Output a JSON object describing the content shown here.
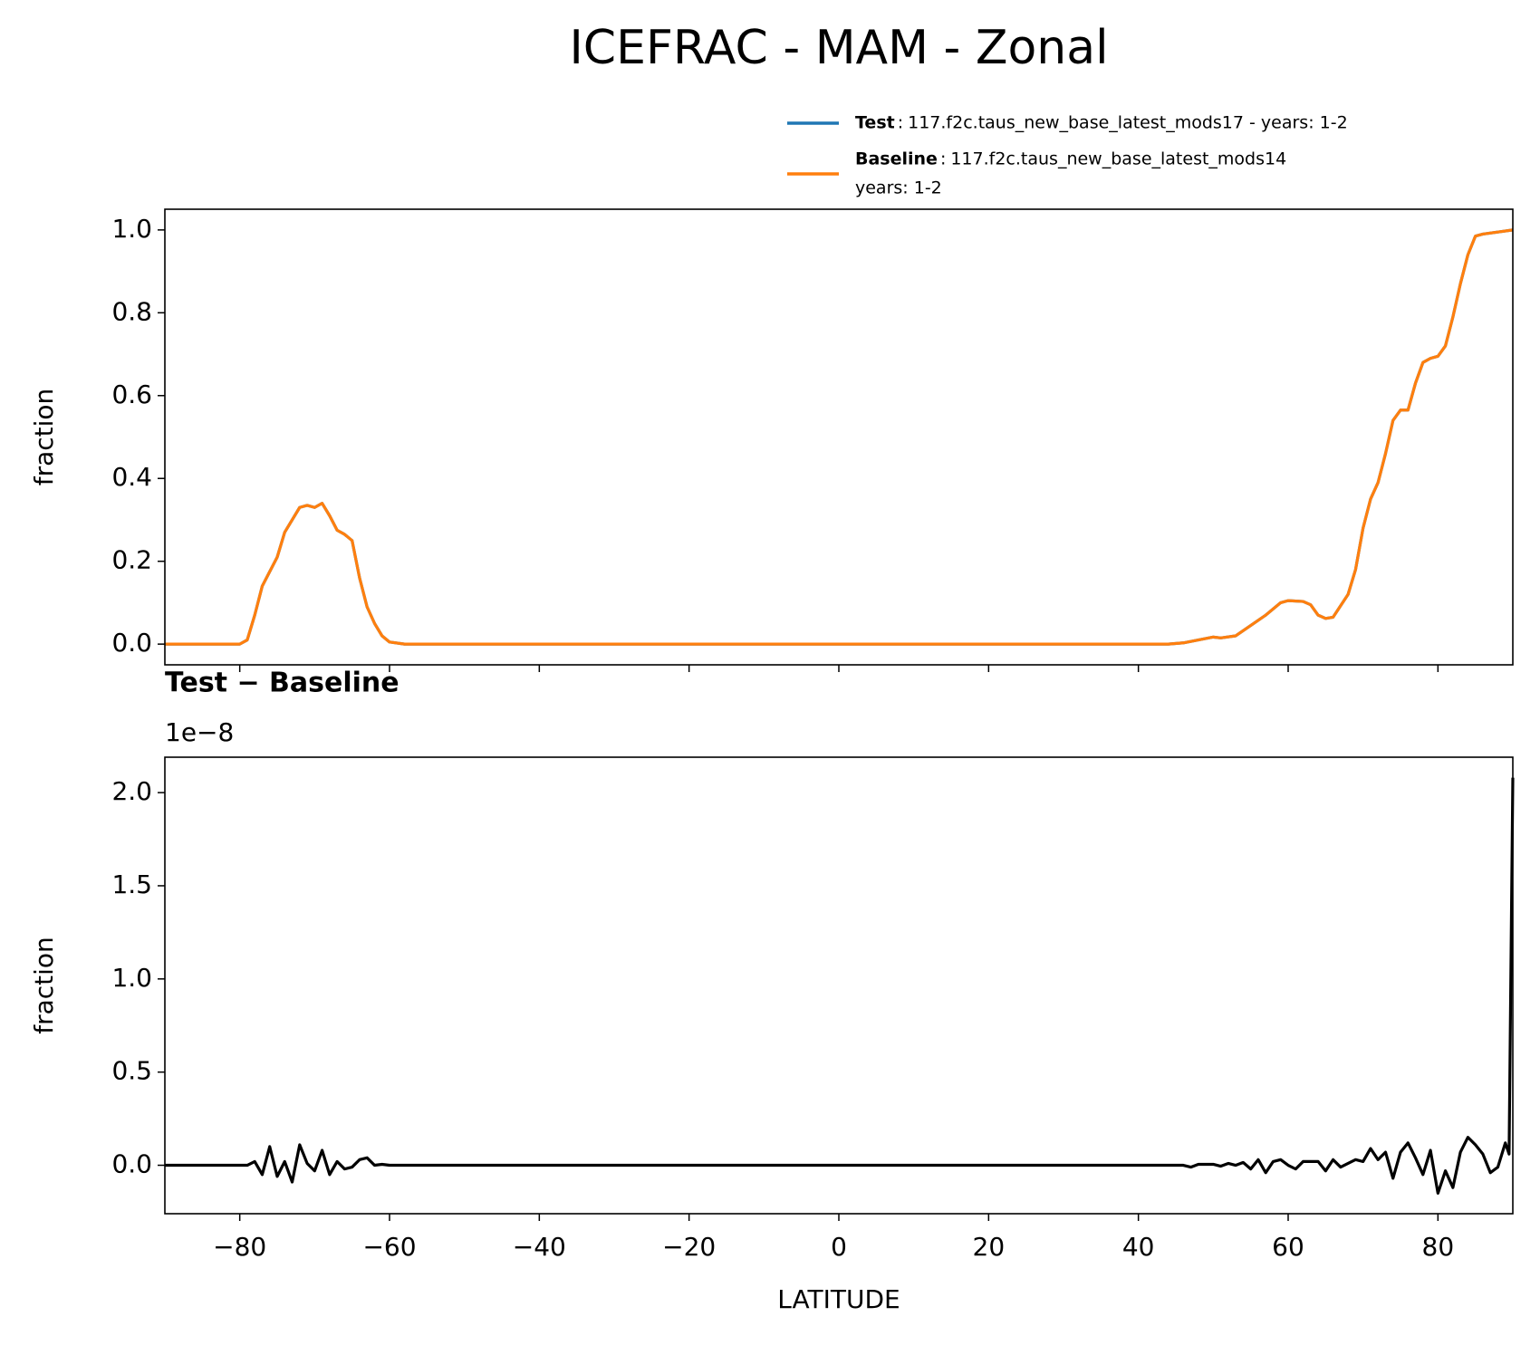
{
  "title": "ICEFRAC - MAM - Zonal",
  "chart_data": [
    {
      "type": "line",
      "ylabel": "fraction",
      "legend": "upper right",
      "label_separator": ":",
      "xlim": [
        -90,
        90
      ],
      "xticks": [
        {
          "value": -80,
          "label": "−80"
        },
        {
          "value": -60,
          "label": "−60"
        },
        {
          "value": -40,
          "label": "−40"
        },
        {
          "value": -20,
          "label": "−20"
        },
        0,
        20,
        40,
        60,
        80
      ],
      "xtick_labels": false,
      "ylim": [
        -0.05,
        1.05
      ],
      "yticks": [
        {
          "value": 0,
          "label": "0.0"
        },
        0.2,
        0.4,
        0.6,
        0.8,
        {
          "value": 1,
          "label": "1.0"
        }
      ],
      "x": [
        -90,
        -80,
        -79,
        -78,
        -77,
        -75,
        -74,
        -72,
        -71,
        -70,
        -69,
        -68,
        -67,
        -66,
        -65,
        -64,
        -63,
        -62,
        -61,
        -60,
        -58,
        44,
        46,
        48,
        50,
        51,
        53,
        55,
        57,
        59,
        60,
        62,
        63,
        64,
        65,
        66,
        68,
        69,
        70,
        71,
        72,
        73,
        74,
        75,
        76,
        77,
        78,
        79,
        80,
        81,
        82,
        83,
        84,
        85,
        86,
        88,
        90
      ],
      "series": [
        {
          "name": "Test",
          "description": [
            "117.f2c.taus_new_base_latest_mods17 - years: 1-2"
          ],
          "color": "#1f77b4",
          "values": [
            0,
            0,
            0.01,
            0.07,
            0.14,
            0.21,
            0.27,
            0.33,
            0.335,
            0.33,
            0.34,
            0.31,
            0.275,
            0.265,
            0.25,
            0.16,
            0.09,
            0.05,
            0.02,
            0.005,
            0,
            0,
            0.003,
            0.01,
            0.017,
            0.015,
            0.02,
            0.045,
            0.07,
            0.1,
            0.105,
            0.103,
            0.095,
            0.07,
            0.062,
            0.065,
            0.12,
            0.18,
            0.28,
            0.35,
            0.39,
            0.46,
            0.54,
            0.565,
            0.565,
            0.63,
            0.68,
            0.69,
            0.695,
            0.72,
            0.79,
            0.87,
            0.94,
            0.985,
            0.99,
            0.995,
            1.0
          ]
        },
        {
          "name": "Baseline",
          "description": [
            "117.f2c.taus_new_base_latest_mods14",
            "years: 1-2"
          ],
          "color": "#ff7f0e",
          "values": [
            0,
            0,
            0.01,
            0.07,
            0.14,
            0.21,
            0.27,
            0.33,
            0.335,
            0.33,
            0.34,
            0.31,
            0.275,
            0.265,
            0.25,
            0.16,
            0.09,
            0.05,
            0.02,
            0.005,
            0,
            0,
            0.003,
            0.01,
            0.017,
            0.015,
            0.02,
            0.045,
            0.07,
            0.1,
            0.105,
            0.103,
            0.095,
            0.07,
            0.062,
            0.065,
            0.12,
            0.18,
            0.28,
            0.35,
            0.39,
            0.46,
            0.54,
            0.565,
            0.565,
            0.63,
            0.68,
            0.69,
            0.695,
            0.72,
            0.79,
            0.87,
            0.94,
            0.985,
            0.99,
            0.995,
            1.0
          ]
        }
      ]
    },
    {
      "type": "line",
      "title": "Test − Baseline",
      "offset_label": "1e−8",
      "xlabel": "LATITUDE",
      "ylabel": "fraction",
      "xlim": [
        -90,
        90
      ],
      "xticks": [
        {
          "value": -80,
          "label": "−80"
        },
        {
          "value": -60,
          "label": "−60"
        },
        {
          "value": -40,
          "label": "−40"
        },
        {
          "value": -20,
          "label": "−20"
        },
        0,
        20,
        40,
        60,
        80
      ],
      "xtick_labels": true,
      "ylim": [
        -0.26,
        2.19
      ],
      "yticks": [
        {
          "value": 0,
          "label": "0.0"
        },
        0.5,
        {
          "value": 1,
          "label": "1.0"
        },
        1.5,
        {
          "value": 2,
          "label": "2.0"
        }
      ],
      "color": "#000000",
      "x": [
        -90,
        -79,
        -78,
        -77,
        -76,
        -75,
        -74,
        -73,
        -72,
        -71,
        -70,
        -69,
        -68,
        -67,
        -66,
        -65,
        -64,
        -63,
        -62,
        -61,
        -60,
        -58,
        46,
        47,
        48,
        50,
        51,
        52,
        53,
        54,
        55,
        56,
        57,
        58,
        59,
        60,
        61,
        62,
        64,
        65,
        66,
        67,
        69,
        70,
        71,
        72,
        73,
        74,
        75,
        76,
        77,
        78,
        79,
        80,
        81,
        82,
        83,
        84,
        85,
        86,
        87,
        88,
        89,
        89.5,
        90
      ],
      "values": [
        0,
        0,
        0.02,
        -0.05,
        0.1,
        -0.06,
        0.02,
        -0.09,
        0.11,
        0.01,
        -0.03,
        0.08,
        -0.05,
        0.02,
        -0.02,
        -0.01,
        0.03,
        0.04,
        0,
        0.005,
        0,
        0,
        0,
        -0.01,
        0.005,
        0.005,
        -0.005,
        0.01,
        0,
        0.015,
        -0.02,
        0.03,
        -0.04,
        0.02,
        0.03,
        0,
        -0.02,
        0.02,
        0.02,
        -0.03,
        0.03,
        -0.01,
        0.03,
        0.02,
        0.09,
        0.03,
        0.07,
        -0.07,
        0.07,
        0.12,
        0.04,
        -0.05,
        0.08,
        -0.15,
        -0.03,
        -0.12,
        0.07,
        0.15,
        0.11,
        0.06,
        -0.04,
        -0.01,
        0.12,
        0.06,
        2.08
      ]
    }
  ]
}
